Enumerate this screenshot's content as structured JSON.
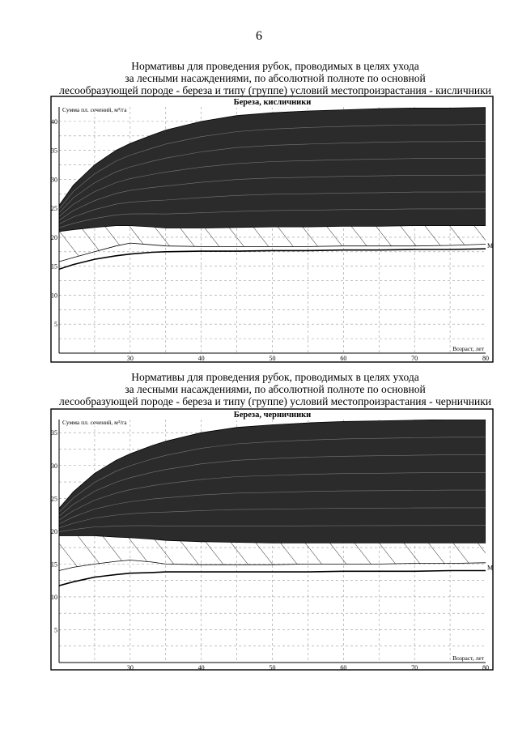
{
  "page": {
    "number": "6"
  },
  "sections": [
    {
      "title_lines": [
        "Нормативы для проведения рубок, проводимых в целях ухода",
        "за лесными насаждениями, по абсолютной полноте по основной",
        "лесообразующей породе - береза и типу (группе) условий местопроизрастания - кисличники"
      ]
    },
    {
      "title_lines": [
        "Нормативы для проведения рубок, проводимых в целях ухода",
        "за лесными насаждениями, по абсолютной полноте по основной",
        "лесообразующей породе - береза и типу (группе) условий местопроизрастания - черничники"
      ]
    }
  ],
  "colors": {
    "dark_band": "#2b2b2b",
    "line": "#000000",
    "grid": "#9a9a9a"
  },
  "chart_data": [
    {
      "type": "area",
      "title": "Береза, кисличники",
      "ylabel": "Сумма пл. сечений, м³/га",
      "xlabel": "Возраст, лет",
      "xlim": [
        20,
        80
      ],
      "ylim": [
        0,
        42.5
      ],
      "x_ticks": [
        30,
        40,
        50,
        60,
        70,
        80
      ],
      "y_ticks": [
        5,
        10,
        15,
        20,
        25,
        30,
        35,
        40
      ],
      "grid": true,
      "x": [
        20,
        22,
        25,
        28,
        30,
        33,
        35,
        40,
        45,
        50,
        55,
        60,
        65,
        70,
        75,
        80
      ],
      "series": [
        {
          "role": "dark-band-upper",
          "values": [
            25.5,
            29.0,
            32.5,
            35.0,
            36.2,
            37.6,
            38.5,
            40.0,
            41.0,
            41.5,
            41.8,
            42.0,
            42.2,
            42.3,
            42.3,
            42.4
          ]
        },
        {
          "role": "dark-band-lower",
          "values": [
            21.0,
            21.3,
            21.7,
            22.0,
            22.0,
            21.8,
            21.6,
            21.6,
            21.7,
            21.8,
            21.8,
            21.9,
            21.9,
            22.0,
            22.0,
            22.0
          ]
        },
        {
          "role": "hatched-band-lower",
          "values": [
            15.8,
            16.5,
            17.5,
            18.5,
            19.0,
            18.7,
            18.5,
            18.4,
            18.4,
            18.4,
            18.4,
            18.5,
            18.5,
            18.5,
            18.6,
            18.8
          ]
        },
        {
          "name": "М",
          "role": "line-M",
          "values": [
            14.5,
            15.3,
            16.2,
            16.8,
            17.1,
            17.4,
            17.5,
            17.6,
            17.6,
            17.7,
            17.7,
            17.8,
            17.8,
            17.9,
            17.9,
            18.0
          ]
        }
      ]
    },
    {
      "type": "area",
      "title": "Береза, черничники",
      "ylabel": "Сумма пл. сечений, м³/га",
      "xlabel": "Возраст, лет",
      "xlim": [
        20,
        80
      ],
      "ylim": [
        0,
        37
      ],
      "x_ticks": [
        30,
        40,
        50,
        60,
        70,
        80
      ],
      "y_ticks": [
        5,
        10,
        15,
        20,
        25,
        30,
        35
      ],
      "grid": true,
      "x": [
        20,
        22,
        25,
        28,
        30,
        33,
        35,
        40,
        45,
        50,
        55,
        60,
        65,
        70,
        75,
        80
      ],
      "series": [
        {
          "role": "dark-band-upper",
          "values": [
            23.5,
            26.0,
            28.8,
            30.8,
            31.8,
            33.0,
            33.7,
            35.0,
            35.8,
            36.2,
            36.5,
            36.7,
            36.8,
            36.9,
            37.0,
            37.0
          ]
        },
        {
          "role": "dark-band-lower",
          "values": [
            19.3,
            19.3,
            19.3,
            19.1,
            19.0,
            18.8,
            18.6,
            18.4,
            18.3,
            18.2,
            18.2,
            18.2,
            18.2,
            18.2,
            18.2,
            18.2
          ]
        },
        {
          "role": "hatched-band-lower",
          "values": [
            14.0,
            14.5,
            15.0,
            15.4,
            15.6,
            15.3,
            15.0,
            14.9,
            14.9,
            14.9,
            15.0,
            15.0,
            15.0,
            15.1,
            15.1,
            15.2
          ]
        },
        {
          "name": "М",
          "role": "line-M",
          "values": [
            11.7,
            12.3,
            13.0,
            13.4,
            13.6,
            13.7,
            13.8,
            13.8,
            13.8,
            13.8,
            13.8,
            13.9,
            13.9,
            13.9,
            14.0,
            14.0
          ]
        }
      ]
    }
  ]
}
